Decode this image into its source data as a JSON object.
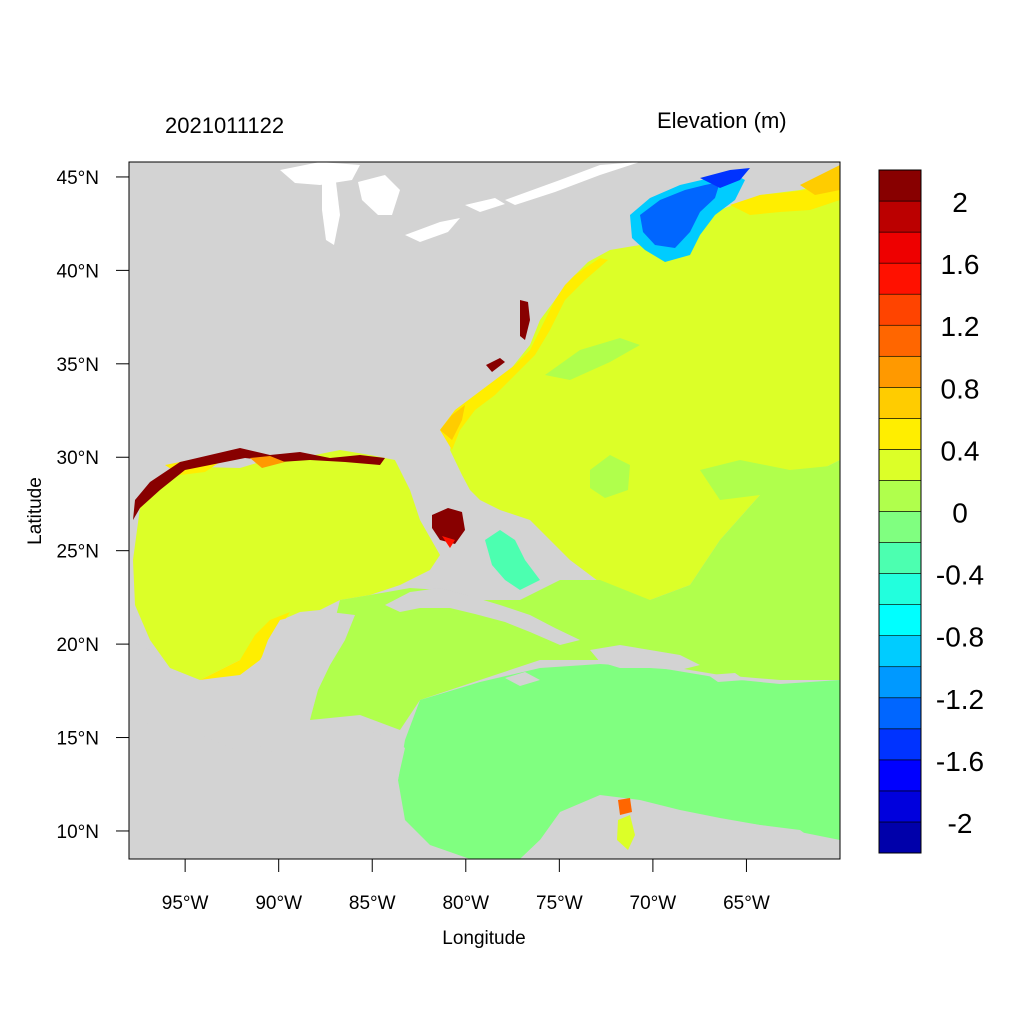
{
  "title_left": "2021011122",
  "title_right": "Elevation (m)",
  "x_axis": {
    "label": "Longitude",
    "ticks": [
      {
        "lon": -95,
        "label": "95°W"
      },
      {
        "lon": -90,
        "label": "90°W"
      },
      {
        "lon": -85,
        "label": "85°W"
      },
      {
        "lon": -80,
        "label": "80°W"
      },
      {
        "lon": -75,
        "label": "75°W"
      },
      {
        "lon": -70,
        "label": "70°W"
      },
      {
        "lon": -65,
        "label": "65°W"
      }
    ]
  },
  "y_axis": {
    "label": "Latitude",
    "ticks": [
      {
        "lat": 45,
        "label": "45°N"
      },
      {
        "lat": 40,
        "label": "40°N"
      },
      {
        "lat": 35,
        "label": "35°N"
      },
      {
        "lat": 30,
        "label": "30°N"
      },
      {
        "lat": 25,
        "label": "25°N"
      },
      {
        "lat": 20,
        "label": "20°N"
      },
      {
        "lat": 15,
        "label": "15°N"
      },
      {
        "lat": 10,
        "label": "10°N"
      }
    ]
  },
  "map_extent": {
    "lon_min": -98,
    "lon_max": -60,
    "lat_min": 8.5,
    "lat_max": 45.8
  },
  "colors": {
    "land": "#d3d3d3",
    "water_boundary": "#ffffff",
    "field_0_2_to_0_4": "#dcff28",
    "field_0_to_0_2": "#b0ff4c",
    "field_neg0_2_to_0": "#80ff80",
    "field_0_4_to_0_6": "#ffee00",
    "field_surge_high": "#880000"
  },
  "legend": {
    "colors": [
      "#0000aa",
      "#0000dd",
      "#0000ff",
      "#0033ff",
      "#0066ff",
      "#0099ff",
      "#00ccff",
      "#00ffff",
      "#22ffdd",
      "#4cffb0",
      "#80ff80",
      "#b0ff4c",
      "#dcff28",
      "#ffee00",
      "#ffcc00",
      "#ff9900",
      "#ff6600",
      "#ff4400",
      "#ff1100",
      "#ee0000",
      "#bb0000",
      "#880000"
    ],
    "labels": [
      "2",
      "1.6",
      "1.2",
      "0.8",
      "0.4",
      "0",
      "-0.4",
      "-0.8",
      "-1.2",
      "-1.6",
      "-2"
    ]
  }
}
